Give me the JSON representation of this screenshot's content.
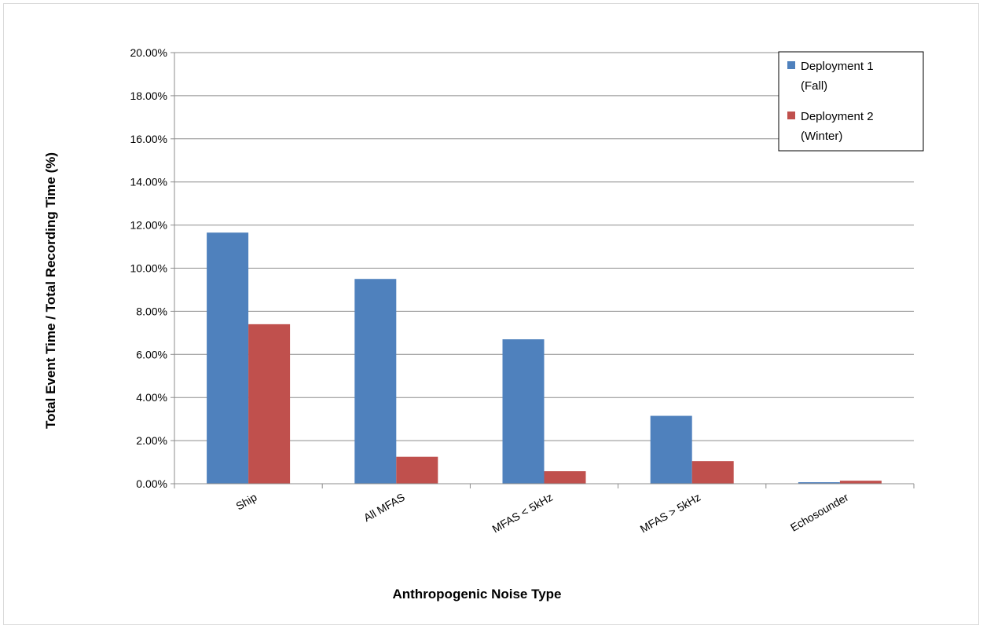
{
  "chart_data": {
    "type": "bar",
    "title": "",
    "xlabel": "Anthropogenic Noise Type",
    "ylabel": "Total Event Time / Total Recording Time (%)",
    "categories": [
      "Ship",
      "All MFAS",
      "MFAS < 5kHz",
      "MFAS > 5kHz",
      "Echosounder"
    ],
    "series": [
      {
        "name": "Deployment 1 (Fall)",
        "name_lines": [
          "Deployment 1",
          "(Fall)"
        ],
        "color": "#4f81bd",
        "values": [
          11.65,
          9.5,
          6.7,
          3.15,
          0.07
        ]
      },
      {
        "name": "Deployment 2 (Winter)",
        "name_lines": [
          "Deployment 2",
          "(Winter)"
        ],
        "color": "#c0504d",
        "values": [
          7.4,
          1.25,
          0.58,
          1.05,
          0.14
        ]
      }
    ],
    "ylim": [
      0,
      20
    ],
    "yticks": [
      0,
      2,
      4,
      6,
      8,
      10,
      12,
      14,
      16,
      18,
      20
    ],
    "ytick_labels": [
      "0.00%",
      "2.00%",
      "4.00%",
      "6.00%",
      "8.00%",
      "10.00%",
      "12.00%",
      "14.00%",
      "16.00%",
      "18.00%",
      "20.00%"
    ],
    "grid": true,
    "legend_position": "top-right",
    "gridline_color": "#8c8c8c",
    "axis_color": "#8c8c8c"
  }
}
